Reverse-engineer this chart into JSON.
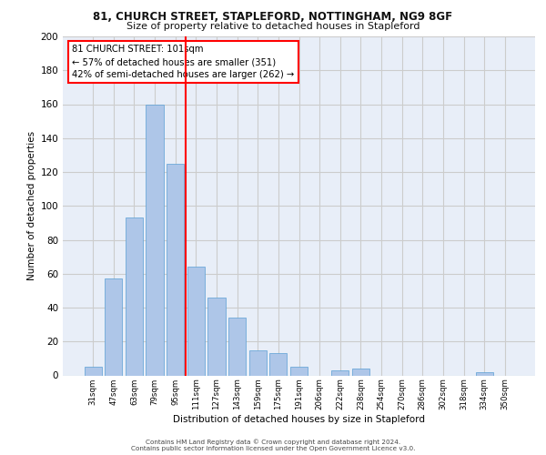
{
  "title1": "81, CHURCH STREET, STAPLEFORD, NOTTINGHAM, NG9 8GF",
  "title2": "Size of property relative to detached houses in Stapleford",
  "xlabel": "Distribution of detached houses by size in Stapleford",
  "ylabel": "Number of detached properties",
  "bar_categories": [
    "31sqm",
    "47sqm",
    "63sqm",
    "79sqm",
    "95sqm",
    "111sqm",
    "127sqm",
    "143sqm",
    "159sqm",
    "175sqm",
    "191sqm",
    "206sqm",
    "222sqm",
    "238sqm",
    "254sqm",
    "270sqm",
    "286sqm",
    "302sqm",
    "318sqm",
    "334sqm",
    "350sqm"
  ],
  "bar_values": [
    5,
    57,
    93,
    160,
    125,
    64,
    46,
    34,
    15,
    13,
    5,
    0,
    3,
    4,
    0,
    0,
    0,
    0,
    0,
    2,
    0
  ],
  "bar_color": "#aec6e8",
  "bar_edge_color": "#5a9fd4",
  "redline_x": 4.5,
  "annotation_text": "81 CHURCH STREET: 101sqm\n← 57% of detached houses are smaller (351)\n42% of semi-detached houses are larger (262) →",
  "annotation_box_color": "white",
  "annotation_box_edge_color": "red",
  "redline_color": "red",
  "ylim": [
    0,
    200
  ],
  "yticks": [
    0,
    20,
    40,
    60,
    80,
    100,
    120,
    140,
    160,
    180,
    200
  ],
  "grid_color": "#cccccc",
  "footer_line1": "Contains HM Land Registry data © Crown copyright and database right 2024.",
  "footer_line2": "Contains public sector information licensed under the Open Government Licence v3.0.",
  "background_color": "#e8eef8"
}
